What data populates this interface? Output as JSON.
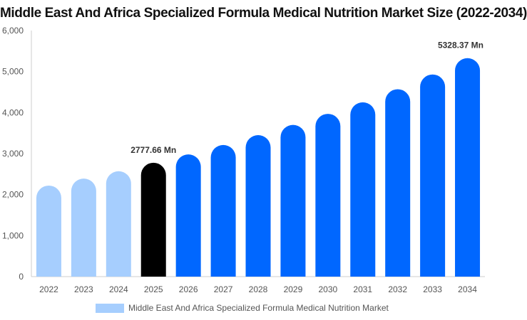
{
  "chart_data": {
    "type": "bar",
    "title": "Middle East And Africa Specialized Formula Medical Nutrition Market Size (2022-2034)",
    "categories": [
      "2022",
      "2023",
      "2024",
      "2025",
      "2026",
      "2027",
      "2028",
      "2029",
      "2030",
      "2031",
      "2032",
      "2033",
      "2034"
    ],
    "series": [
      {
        "name": "Middle East And Africa Specialized Formula Medical Nutrition Market",
        "values": [
          2220,
          2390,
          2570,
          2777.66,
          2980,
          3210,
          3450,
          3700,
          3970,
          4250,
          4570,
          4930,
          5328.37
        ]
      }
    ],
    "ylim": [
      0,
      6000
    ],
    "yticks": [
      "0",
      "1,000",
      "2,000",
      "3,000",
      "4,000",
      "5,000",
      "6,000"
    ],
    "grid": false,
    "legend_position": "bottom",
    "annotations": [
      {
        "category": "2025",
        "text": "2777.66 Mn"
      },
      {
        "category": "2034",
        "text": "5328.37 Mn"
      }
    ],
    "colors": {
      "historical": "#a6cefe",
      "current": "#000000",
      "forecast": "#0067ff",
      "axis": "#cccccc",
      "tick_label": "#555555",
      "annotation": "#333333"
    },
    "bar_color_groups": [
      "historical",
      "historical",
      "historical",
      "current",
      "forecast",
      "forecast",
      "forecast",
      "forecast",
      "forecast",
      "forecast",
      "forecast",
      "forecast",
      "forecast"
    ]
  }
}
